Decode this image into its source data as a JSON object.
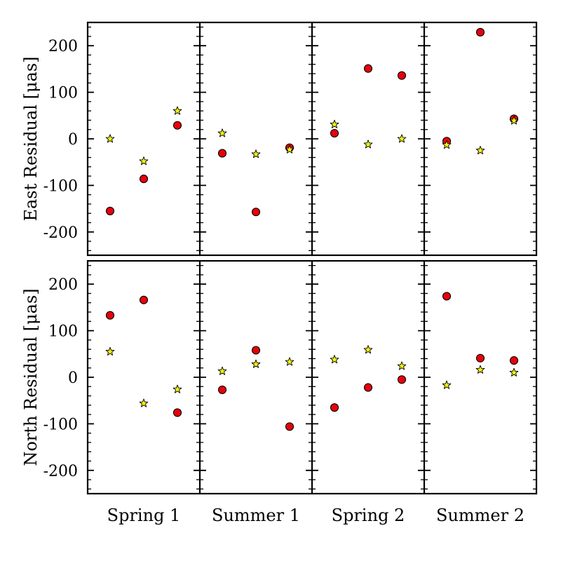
{
  "chart_data": {
    "type": "scatter",
    "categories": [
      "Spring 1",
      "Summer 1",
      "Spring 2",
      "Summer 2"
    ],
    "ylim": [
      -250,
      250
    ],
    "yticks": [
      -200,
      -100,
      0,
      100,
      200
    ],
    "ytick_labels": [
      "-200",
      "-100",
      "0",
      "100",
      "200"
    ],
    "grid": false,
    "marker_colors": {
      "circle": "#e8000b",
      "star": "#f2f20a"
    },
    "panels": [
      {
        "ylabel": "East Residual [μas]",
        "groups": [
          {
            "category": "Spring 1",
            "circle": [
              -155,
              -86,
              29
            ],
            "star": [
              0,
              -48,
              60
            ]
          },
          {
            "category": "Summer 1",
            "circle": [
              -31,
              -157,
              -19
            ],
            "star": [
              12,
              -33,
              -23
            ]
          },
          {
            "category": "Spring 2",
            "circle": [
              12,
              151,
              136
            ],
            "star": [
              31,
              -12,
              0
            ]
          },
          {
            "category": "Summer 2",
            "circle": [
              -5,
              229,
              43
            ],
            "star": [
              -13,
              -25,
              39
            ]
          }
        ]
      },
      {
        "ylabel": "North Residual [μas]",
        "groups": [
          {
            "category": "Spring 1",
            "circle": [
              133,
              166,
              -76
            ],
            "star": [
              55,
              -56,
              -26
            ]
          },
          {
            "category": "Summer 1",
            "circle": [
              -27,
              58,
              -106
            ],
            "star": [
              13,
              28,
              33
            ]
          },
          {
            "category": "Spring 2",
            "circle": [
              -65,
              -22,
              -5
            ],
            "star": [
              38,
              59,
              24
            ]
          },
          {
            "category": "Summer 2",
            "circle": [
              174,
              41,
              36
            ],
            "star": [
              -17,
              16,
              10
            ]
          }
        ]
      }
    ]
  }
}
